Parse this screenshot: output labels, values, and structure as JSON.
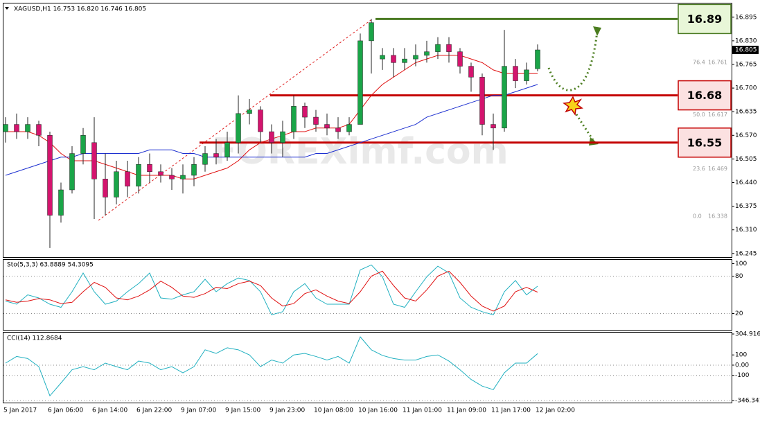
{
  "chart_data": [
    {
      "type": "candlestick",
      "title": "XAGUSD,H1  16.753 16.820 16.746 16.805",
      "watermark": "FOREXimf.com",
      "categories": [
        "5 Jan 2017",
        null,
        null,
        null,
        "6 Jan 06:00",
        null,
        null,
        null,
        "6 Jan 14:00",
        null,
        null,
        null,
        "6 Jan 22:00",
        null,
        null,
        null,
        "9 Jan 07:00",
        null,
        null,
        null,
        "9 Jan 15:00",
        null,
        null,
        null,
        "9 Jan 23:00",
        null,
        null,
        null,
        "10 Jan 08:00",
        null,
        null,
        null,
        "10 Jan 16:00",
        null,
        null,
        null,
        "11 Jan 01:00",
        null,
        null,
        null,
        "11 Jan 09:00",
        null,
        null,
        null,
        "11 Jan 17:00",
        null,
        null,
        null,
        "12 Jan 02:00"
      ],
      "open": [
        16.58,
        16.6,
        16.58,
        16.6,
        16.57,
        16.35,
        16.42,
        16.52,
        16.55,
        16.45,
        16.4,
        16.47,
        16.43,
        16.49,
        16.47,
        16.46,
        16.45,
        16.46,
        16.49,
        16.52,
        16.51,
        16.55,
        16.63,
        16.64,
        16.58,
        16.55,
        16.58,
        16.65,
        16.62,
        16.6,
        16.59,
        16.58,
        16.6,
        16.83,
        16.78,
        16.79,
        16.77,
        16.78,
        16.79,
        16.8,
        16.82,
        16.8,
        16.76,
        16.73,
        16.6,
        16.59,
        16.76,
        16.72,
        16.753
      ],
      "high": [
        16.62,
        16.63,
        16.62,
        16.61,
        16.58,
        16.44,
        16.54,
        16.59,
        16.62,
        16.52,
        16.5,
        16.5,
        16.51,
        16.52,
        16.49,
        16.48,
        16.49,
        16.51,
        16.54,
        16.56,
        16.58,
        16.68,
        16.67,
        16.65,
        16.6,
        16.61,
        16.68,
        16.66,
        16.64,
        16.63,
        16.62,
        16.62,
        16.85,
        16.89,
        16.81,
        16.81,
        16.81,
        16.82,
        16.83,
        16.84,
        16.84,
        16.81,
        16.77,
        16.74,
        16.63,
        16.86,
        16.78,
        16.77,
        16.82
      ],
      "low": [
        16.55,
        16.56,
        16.56,
        16.54,
        16.26,
        16.33,
        16.41,
        16.49,
        16.34,
        16.35,
        16.38,
        16.4,
        16.41,
        16.44,
        16.44,
        16.42,
        16.41,
        16.43,
        16.47,
        16.49,
        16.5,
        16.52,
        16.6,
        16.55,
        16.52,
        16.51,
        16.56,
        16.59,
        16.58,
        16.57,
        16.56,
        16.57,
        16.6,
        16.74,
        16.75,
        16.73,
        16.75,
        16.76,
        16.77,
        16.78,
        16.77,
        16.74,
        16.69,
        16.57,
        16.53,
        16.58,
        16.7,
        16.71,
        16.746
      ],
      "close": [
        16.6,
        16.58,
        16.6,
        16.57,
        16.35,
        16.42,
        16.52,
        16.57,
        16.45,
        16.4,
        16.47,
        16.43,
        16.49,
        16.47,
        16.46,
        16.45,
        16.46,
        16.49,
        16.52,
        16.51,
        16.55,
        16.63,
        16.64,
        16.58,
        16.55,
        16.58,
        16.65,
        16.62,
        16.6,
        16.59,
        16.58,
        16.6,
        16.83,
        16.88,
        16.79,
        16.77,
        16.78,
        16.79,
        16.8,
        16.82,
        16.8,
        16.76,
        16.73,
        16.6,
        16.59,
        16.76,
        16.72,
        16.75,
        16.805
      ],
      "up_color": "#1aa548",
      "down_color": "#d4146e",
      "series": [
        {
          "color": "#e01010",
          "values": [
            16.58,
            16.58,
            16.58,
            16.57,
            16.55,
            16.52,
            16.5,
            16.5,
            16.5,
            16.49,
            16.48,
            16.47,
            16.46,
            16.46,
            16.46,
            16.46,
            16.45,
            16.45,
            16.46,
            16.47,
            16.48,
            16.5,
            16.53,
            16.55,
            16.56,
            16.57,
            16.58,
            16.58,
            16.59,
            16.59,
            16.59,
            16.6,
            16.64,
            16.68,
            16.71,
            16.73,
            16.75,
            16.77,
            16.78,
            16.79,
            16.79,
            16.79,
            16.78,
            16.77,
            16.75,
            16.74,
            16.74,
            16.74,
            16.74
          ]
        },
        {
          "color": "#1c2fd0",
          "values": [
            16.46,
            16.47,
            16.48,
            16.49,
            16.5,
            16.51,
            16.51,
            16.52,
            16.52,
            16.52,
            16.52,
            16.52,
            16.52,
            16.53,
            16.53,
            16.53,
            16.52,
            16.52,
            16.51,
            16.51,
            16.51,
            16.51,
            16.51,
            16.51,
            16.51,
            16.51,
            16.51,
            16.51,
            16.52,
            16.52,
            16.53,
            16.54,
            16.55,
            16.56,
            16.57,
            16.58,
            16.59,
            16.6,
            16.62,
            16.63,
            16.64,
            16.65,
            16.66,
            16.67,
            16.68,
            16.68,
            16.69,
            16.7,
            16.71
          ]
        }
      ],
      "ylim": [
        16.237,
        16.927
      ],
      "yticks": [
        {
          "value": 16.245,
          "label": "16.245"
        },
        {
          "value": 16.31,
          "label": "16.310"
        },
        {
          "value": 16.375,
          "label": "16.375"
        },
        {
          "value": 16.44,
          "label": "16.440"
        },
        {
          "value": 16.505,
          "label": "16.505"
        },
        {
          "value": 16.57,
          "label": "16.570"
        },
        {
          "value": 16.635,
          "label": "16.635"
        },
        {
          "value": 16.7,
          "label": "16.700"
        },
        {
          "value": 16.765,
          "label": "16.765"
        },
        {
          "value": 16.83,
          "label": "16.830"
        },
        {
          "value": 16.895,
          "label": "16.895"
        }
      ],
      "fib": [
        {
          "level": "76.4",
          "price": 16.761
        },
        {
          "level": "50.0",
          "price": 16.617
        },
        {
          "level": "23.6",
          "price": 16.469
        },
        {
          "level": "0.0",
          "price": 16.338
        }
      ],
      "levels": [
        {
          "price": 16.89,
          "color": "#4a7a22",
          "fill": "#e8f6d8"
        },
        {
          "price": 16.68,
          "color": "#c40000",
          "fill": "#fbe1e1"
        },
        {
          "price": 16.55,
          "color": "#c40000",
          "fill": "#fbe1e1"
        }
      ]
    },
    {
      "type": "line",
      "title": "Sto(5,3,3) 63.8889 54.3095",
      "ylim": [
        -5,
        105
      ],
      "yticks": [
        20,
        80,
        100
      ],
      "series": [
        {
          "color": "#20b0c0",
          "values": [
            40,
            35,
            50,
            45,
            35,
            30,
            55,
            85,
            55,
            35,
            40,
            55,
            68,
            85,
            45,
            43,
            50,
            55,
            75,
            55,
            68,
            77,
            73,
            55,
            18,
            23,
            55,
            68,
            45,
            35,
            35,
            35,
            90,
            98,
            79,
            35,
            30,
            55,
            79,
            96,
            85,
            45,
            30,
            23,
            18,
            55,
            73,
            50,
            63.8889
          ]
        },
        {
          "color": "#e01010",
          "values": [
            42,
            38,
            40,
            44,
            42,
            36,
            38,
            55,
            70,
            62,
            45,
            42,
            48,
            58,
            72,
            62,
            48,
            46,
            52,
            62,
            60,
            68,
            72,
            65,
            45,
            32,
            36,
            52,
            58,
            48,
            40,
            36,
            55,
            80,
            88,
            65,
            45,
            40,
            58,
            80,
            88,
            70,
            48,
            32,
            24,
            32,
            55,
            62,
            54.3095
          ]
        }
      ]
    },
    {
      "type": "line",
      "title": "CCI(14) 112.8684",
      "ylim": [
        -346.341,
        304.9162
      ],
      "yticks": [
        {
          "value": 304.9162,
          "label": "304.9162"
        },
        100,
        {
          "value": 0,
          "label": "0.00"
        },
        -100,
        {
          "value": -346.341,
          "label": "-346.341"
        }
      ],
      "series": [
        {
          "color": "#20b0c0",
          "values": [
            20,
            85,
            65,
            -15,
            -300,
            -175,
            -45,
            -15,
            -45,
            20,
            -15,
            -45,
            40,
            20,
            -45,
            -15,
            -75,
            -15,
            150,
            115,
            170,
            150,
            100,
            -15,
            50,
            20,
            100,
            115,
            85,
            50,
            85,
            20,
            277,
            150,
            95,
            65,
            50,
            50,
            85,
            100,
            40,
            -45,
            -140,
            -205,
            -240,
            -75,
            20,
            20,
            112.8684
          ]
        }
      ]
    }
  ]
}
